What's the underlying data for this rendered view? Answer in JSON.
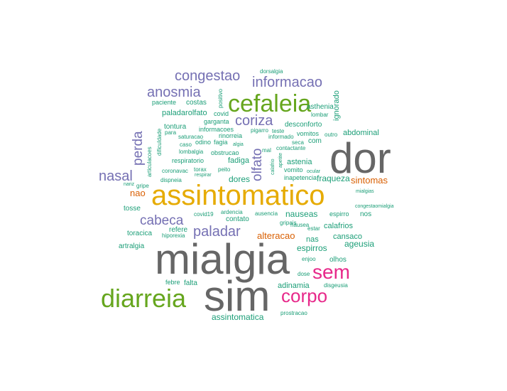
{
  "colors": {
    "gray": "#666666",
    "gold": "#e6ab02",
    "green": "#66a61e",
    "magenta": "#e7298a",
    "purple": "#7570b3",
    "orange": "#d95f02",
    "teal": "#1b9e77"
  },
  "words": [
    {
      "text": "dor",
      "color": "gray"
    },
    {
      "text": "mialgia",
      "color": "gray"
    },
    {
      "text": "sim",
      "color": "gray"
    },
    {
      "text": "assintomatico",
      "color": "gold"
    },
    {
      "text": "cefaleia",
      "color": "green"
    },
    {
      "text": "diarreia",
      "color": "green"
    },
    {
      "text": "sem",
      "color": "magenta"
    },
    {
      "text": "corpo",
      "color": "magenta"
    },
    {
      "text": "congestao",
      "color": "purple"
    },
    {
      "text": "informacao",
      "color": "purple"
    },
    {
      "text": "anosmia",
      "color": "purple"
    },
    {
      "text": "coriza",
      "color": "purple"
    },
    {
      "text": "perda",
      "color": "purple"
    },
    {
      "text": "olfato",
      "color": "purple"
    },
    {
      "text": "nasal",
      "color": "purple"
    },
    {
      "text": "cabeca",
      "color": "purple"
    },
    {
      "text": "paladar",
      "color": "purple"
    },
    {
      "text": "sintomas",
      "color": "orange"
    },
    {
      "text": "nao",
      "color": "orange"
    },
    {
      "text": "alteracao",
      "color": "orange"
    },
    {
      "text": "ignorado",
      "color": "teal"
    },
    {
      "text": "dorsalgia",
      "color": "teal"
    },
    {
      "text": "positivo",
      "color": "teal"
    },
    {
      "text": "paciente",
      "color": "teal"
    },
    {
      "text": "costas",
      "color": "teal"
    },
    {
      "text": "asthenia",
      "color": "teal"
    },
    {
      "text": "paladarolfato",
      "color": "teal"
    },
    {
      "text": "covid",
      "color": "teal"
    },
    {
      "text": "garganta",
      "color": "teal"
    },
    {
      "text": "lombar",
      "color": "teal"
    },
    {
      "text": "tontura",
      "color": "teal"
    },
    {
      "text": "informacoes",
      "color": "teal"
    },
    {
      "text": "desconforto",
      "color": "teal"
    },
    {
      "text": "para",
      "color": "teal"
    },
    {
      "text": "saturacao",
      "color": "teal"
    },
    {
      "text": "rinorreia",
      "color": "teal"
    },
    {
      "text": "pigarro",
      "color": "teal"
    },
    {
      "text": "teste",
      "color": "teal"
    },
    {
      "text": "vomitos",
      "color": "teal"
    },
    {
      "text": "outro",
      "color": "teal"
    },
    {
      "text": "informado",
      "color": "teal"
    },
    {
      "text": "abdominal",
      "color": "teal"
    },
    {
      "text": "caso",
      "color": "teal"
    },
    {
      "text": "odino",
      "color": "teal"
    },
    {
      "text": "fagia",
      "color": "teal"
    },
    {
      "text": "algia",
      "color": "teal"
    },
    {
      "text": "seca",
      "color": "teal"
    },
    {
      "text": "com",
      "color": "teal"
    },
    {
      "text": "dificuldade",
      "color": "teal"
    },
    {
      "text": "lombalgia",
      "color": "teal"
    },
    {
      "text": "obstrucao",
      "color": "teal"
    },
    {
      "text": "mal",
      "color": "teal"
    },
    {
      "text": "contactante",
      "color": "teal"
    },
    {
      "text": "fadiga",
      "color": "teal"
    },
    {
      "text": "respiratorio",
      "color": "teal"
    },
    {
      "text": "articulacoes",
      "color": "teal"
    },
    {
      "text": "calafrio",
      "color": "teal"
    },
    {
      "text": "apetite",
      "color": "teal"
    },
    {
      "text": "astenia",
      "color": "teal"
    },
    {
      "text": "coronavac",
      "color": "teal"
    },
    {
      "text": "torax",
      "color": "teal"
    },
    {
      "text": "peito",
      "color": "teal"
    },
    {
      "text": "vomito",
      "color": "teal"
    },
    {
      "text": "ocular",
      "color": "teal"
    },
    {
      "text": "respirar",
      "color": "teal"
    },
    {
      "text": "dispneia",
      "color": "teal"
    },
    {
      "text": "dores",
      "color": "teal"
    },
    {
      "text": "inapetencia",
      "color": "teal"
    },
    {
      "text": "fraqueza",
      "color": "teal"
    },
    {
      "text": "nariz",
      "color": "teal"
    },
    {
      "text": "gripe",
      "color": "teal"
    },
    {
      "text": "mialgias",
      "color": "teal"
    },
    {
      "text": "tosse",
      "color": "teal"
    },
    {
      "text": "covid19",
      "color": "teal"
    },
    {
      "text": "ardencia",
      "color": "teal"
    },
    {
      "text": "ausencia",
      "color": "teal"
    },
    {
      "text": "nauseas",
      "color": "teal"
    },
    {
      "text": "espirro",
      "color": "teal"
    },
    {
      "text": "congestaomialgia",
      "color": "teal"
    },
    {
      "text": "contato",
      "color": "teal"
    },
    {
      "text": "nos",
      "color": "teal"
    },
    {
      "text": "gripais",
      "color": "teal"
    },
    {
      "text": "nausea",
      "color": "teal"
    },
    {
      "text": "estar",
      "color": "teal"
    },
    {
      "text": "toracica",
      "color": "teal"
    },
    {
      "text": "refere",
      "color": "teal"
    },
    {
      "text": "hiporexia",
      "color": "teal"
    },
    {
      "text": "nas",
      "color": "teal"
    },
    {
      "text": "calafrios",
      "color": "teal"
    },
    {
      "text": "cansaco",
      "color": "teal"
    },
    {
      "text": "artralgia",
      "color": "teal"
    },
    {
      "text": "ageusia",
      "color": "teal"
    },
    {
      "text": "espirros",
      "color": "teal"
    },
    {
      "text": "olhos",
      "color": "teal"
    },
    {
      "text": "enjoo",
      "color": "teal"
    },
    {
      "text": "dose",
      "color": "teal"
    },
    {
      "text": "febre",
      "color": "teal"
    },
    {
      "text": "falta",
      "color": "teal"
    },
    {
      "text": "adinamia",
      "color": "teal"
    },
    {
      "text": "disgeusia",
      "color": "teal"
    },
    {
      "text": "assintomatica",
      "color": "teal"
    },
    {
      "text": "prostracao",
      "color": "teal"
    }
  ]
}
